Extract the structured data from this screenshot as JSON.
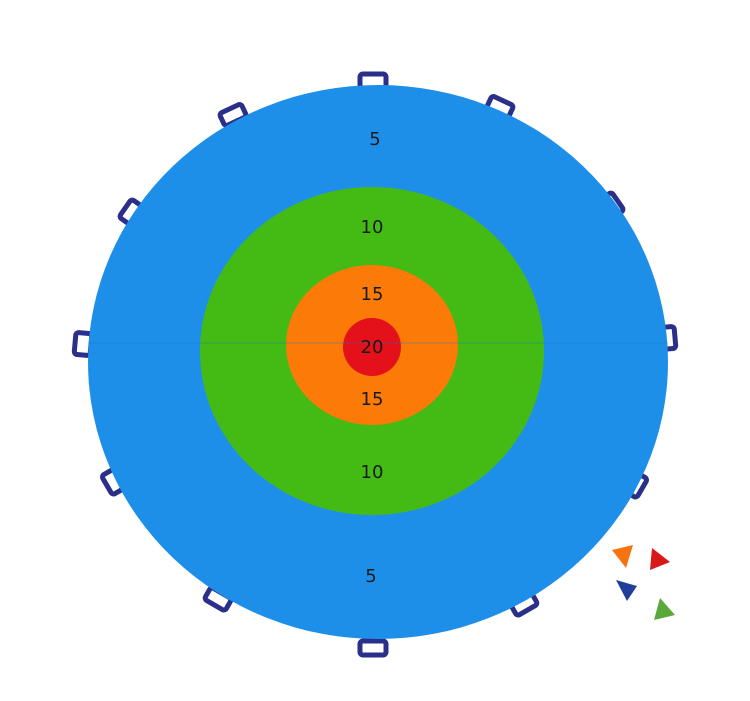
{
  "target": {
    "labels": [
      "5",
      "10",
      "15",
      "20",
      "15",
      "10",
      "5"
    ]
  }
}
